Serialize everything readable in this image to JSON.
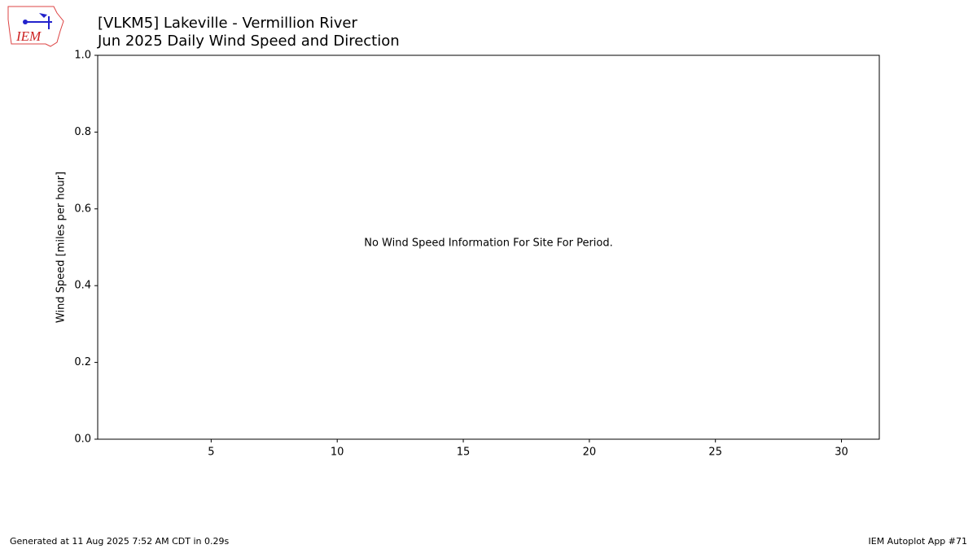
{
  "chart_data": {
    "type": "bar",
    "title": "[VLKM5] Lakeville - Vermillion River",
    "subtitle": "Jun 2025 Daily Wind Speed and Direction",
    "ylabel": "Wind Speed [miles per hour]",
    "annotation": "No Wind Speed Information For Site For Period.",
    "xlim": [
      0.5,
      31.5
    ],
    "xticks": [
      5,
      10,
      15,
      20,
      25,
      30
    ],
    "ylim": [
      0,
      1
    ],
    "yticks": [
      {
        "value": 0,
        "label": "0.0"
      },
      0.2,
      0.4,
      0.6,
      0.8,
      {
        "value": 1,
        "label": "1.0"
      }
    ]
  },
  "logo": "IEM",
  "footer_left": "Generated at 11 Aug 2025 7:52 AM CDT in 0.29s",
  "footer_right": "IEM Autoplot App #71"
}
